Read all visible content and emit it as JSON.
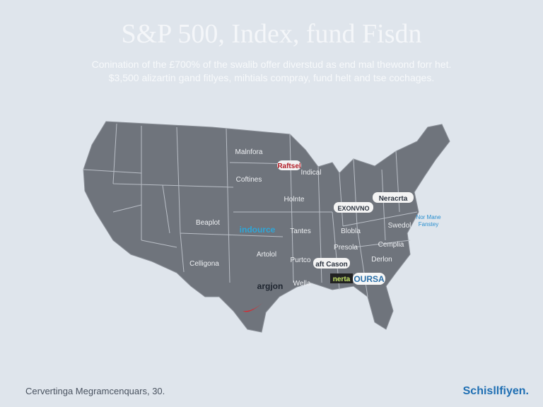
{
  "header": {
    "title": "S&P 500, Index, fund Fisdn",
    "subtitle": [
      "Conination of the £700% of the swalib offer diverstud as end mal thewond forr het.",
      "$3,500 alizartin gand fitlyes, mihtials compray, fund helt and tse cochages."
    ]
  },
  "map": {
    "labels": [
      "Malnfora",
      "Indical",
      "Coftines",
      "Holnte",
      "Beaplot",
      "Tantes",
      "Blobla",
      "Swedol",
      "Cemplia",
      "Artolol",
      "Purtco",
      "Presola",
      "Celligona",
      "Derlon",
      "Wella"
    ],
    "logos": [
      "Raftsel",
      "indource",
      "Neracrta",
      "EXONVNO",
      "aft Cason",
      "argjon",
      "nerta",
      "OURSA"
    ],
    "note": [
      "Nor Mane",
      "Fanstey"
    ]
  },
  "footer": {
    "caption": "Cervertinga Megramcenquars, 30.",
    "brand": "Schisllfiyen."
  }
}
